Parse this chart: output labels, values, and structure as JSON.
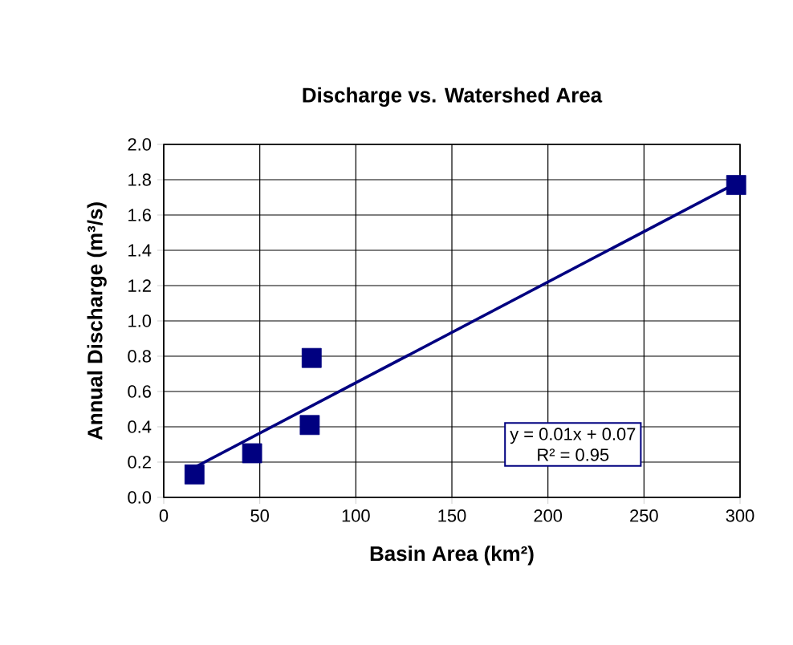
{
  "chart_data": {
    "type": "scatter",
    "title": "Discharge vs. Watershed Area",
    "xlabel": "Basin Area (km²)",
    "ylabel": "Annual Discharge (m³/s)",
    "xlim": [
      0,
      300
    ],
    "xticks": [
      0,
      50,
      100,
      150,
      200,
      250,
      300
    ],
    "ylim": [
      0,
      2
    ],
    "yticks": [
      {
        "value": 0,
        "label": "0.0"
      },
      {
        "value": 0.2,
        "label": "0.2"
      },
      {
        "value": 0.4,
        "label": "0.4"
      },
      {
        "value": 0.6,
        "label": "0.6"
      },
      {
        "value": 0.8,
        "label": "0.8"
      },
      {
        "value": 1,
        "label": "1.0"
      },
      {
        "value": 1.2,
        "label": "1.2"
      },
      {
        "value": 1.4,
        "label": "1.4"
      },
      {
        "value": 1.6,
        "label": "1.6"
      },
      {
        "value": 1.8,
        "label": "1.8"
      },
      {
        "value": 2,
        "label": "2.0"
      }
    ],
    "grid": true,
    "marker": "square",
    "series": [
      {
        "color": "#000080",
        "x": [
          16,
          46,
          76,
          77,
          298
        ],
        "values": [
          0.13,
          0.25,
          0.41,
          0.79,
          1.77
        ]
      },
      {
        "type": "line",
        "marker": "none",
        "color": "#000080",
        "x": [
          16,
          298
        ],
        "values": [
          0.17,
          1.78
        ]
      }
    ],
    "annotations": [
      "y = 0.01x  + 0.07",
      "R² = 0.95"
    ]
  }
}
